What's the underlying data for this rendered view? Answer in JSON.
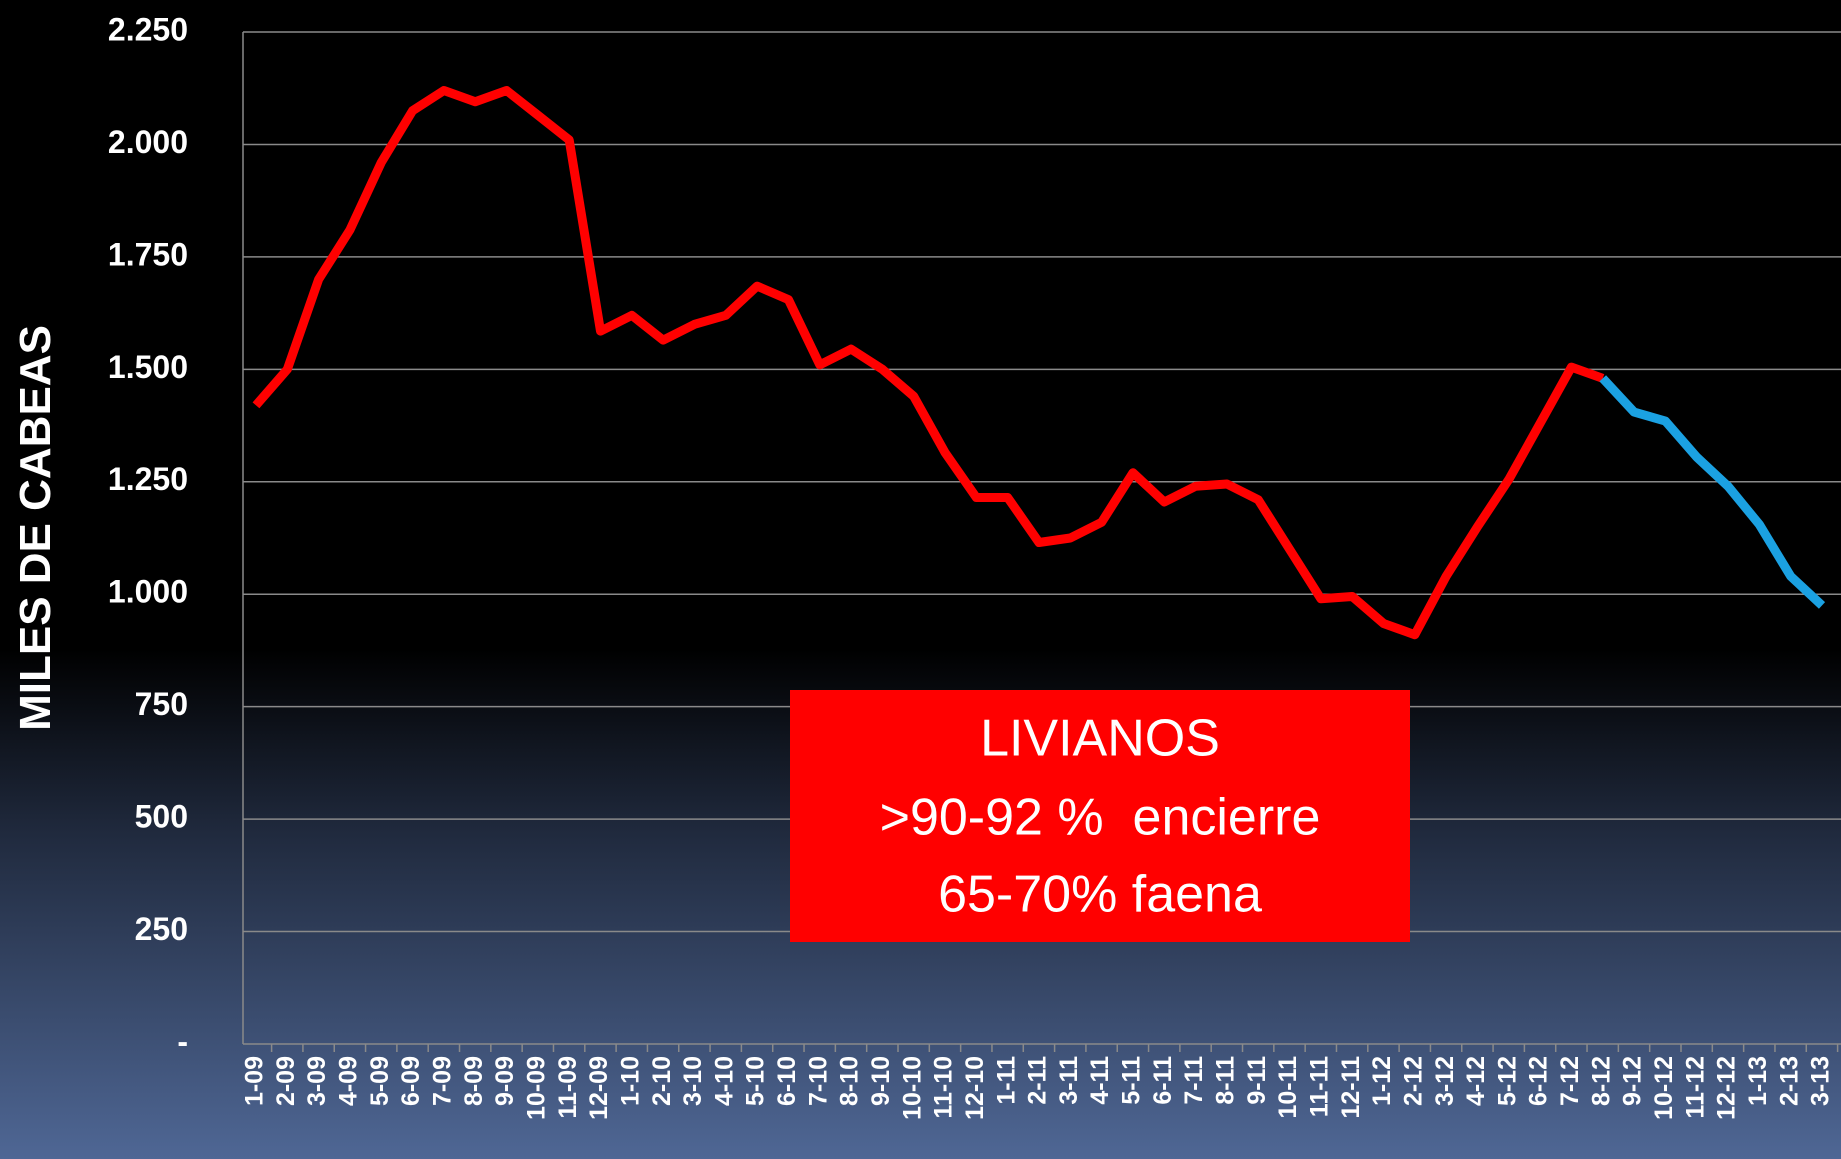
{
  "chart_data": {
    "type": "line",
    "ylabel": "MILES DE CABEAS",
    "categories": [
      "1-09",
      "2-09",
      "3-09",
      "4-09",
      "5-09",
      "6-09",
      "7-09",
      "8-09",
      "9-09",
      "10-09",
      "11-09",
      "12-09",
      "1-10",
      "2-10",
      "3-10",
      "4-10",
      "5-10",
      "6-10",
      "7-10",
      "8-10",
      "9-10",
      "10-10",
      "11-10",
      "12-10",
      "1-11",
      "2-11",
      "3-11",
      "4-11",
      "5-11",
      "6-11",
      "7-11",
      "8-11",
      "9-11",
      "10-11",
      "11-11",
      "12-11",
      "1-12",
      "2-12",
      "3-12",
      "4-12",
      "5-12",
      "6-12",
      "7-12",
      "8-12",
      "9-12",
      "10-12",
      "11-12",
      "12-12",
      "1-13",
      "2-13",
      "3-13"
    ],
    "series": [
      {
        "color": "#ff0000",
        "values": [
          1420,
          1500,
          1700,
          1810,
          1960,
          2075,
          2120,
          2095,
          2120,
          2065,
          2010,
          1585,
          1620,
          1565,
          1600,
          1620,
          1685,
          1655,
          1510,
          1545,
          1500,
          1440,
          1315,
          1215,
          1215,
          1115,
          1125,
          1160,
          1270,
          1205,
          1240,
          1245,
          1210,
          1100,
          990,
          995,
          935,
          910,
          1040,
          1150,
          1255,
          1380,
          1505,
          1480,
          null,
          null,
          null,
          null,
          null,
          null,
          null
        ]
      },
      {
        "color": "#1ba1e2",
        "values": [
          null,
          null,
          null,
          null,
          null,
          null,
          null,
          null,
          null,
          null,
          null,
          null,
          null,
          null,
          null,
          null,
          null,
          null,
          null,
          null,
          null,
          null,
          null,
          null,
          null,
          null,
          null,
          null,
          null,
          null,
          null,
          null,
          null,
          null,
          null,
          null,
          null,
          null,
          null,
          null,
          null,
          null,
          null,
          1480,
          1405,
          1385,
          1305,
          1240,
          1155,
          1040,
          975
        ]
      }
    ],
    "ylim": [
      0,
      2250
    ],
    "yticks": [
      {
        "value": 0,
        "label": "-"
      },
      250,
      500,
      750,
      {
        "value": 1000,
        "label": "1.000"
      },
      {
        "value": 1250,
        "label": "1.250"
      },
      {
        "value": 1500,
        "label": "1.500"
      },
      {
        "value": 1750,
        "label": "1.750"
      },
      {
        "value": 2000,
        "label": "2.000"
      },
      {
        "value": 2250,
        "label": "2.250"
      }
    ],
    "grid": true,
    "annotation": {
      "color": "#ff0000",
      "lines": [
        "LIVIANOS",
        ">90-92 %  encierre",
        "65-70% faena"
      ]
    }
  }
}
